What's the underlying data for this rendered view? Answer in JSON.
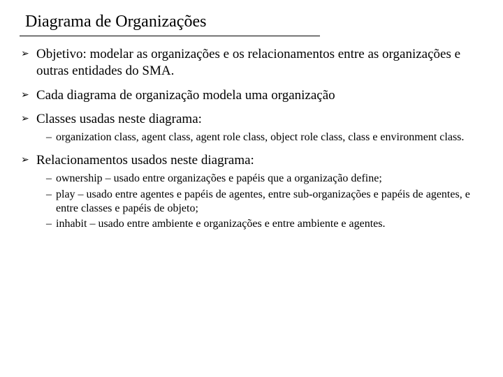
{
  "title": "Diagrama de Organizações",
  "colors": {
    "background": "#ffffff",
    "text": "#000000",
    "rule": "#000000"
  },
  "typography": {
    "title_fontsize": 24,
    "bullet_fontsize": 19,
    "sub_fontsize": 16,
    "font_family": "Times New Roman"
  },
  "bullets": [
    {
      "text": "Objetivo: modelar as organizações e os relacionamentos entre as organizações e outras entidades do SMA.",
      "sub": []
    },
    {
      "text": "Cada diagrama de organização modela uma organização",
      "sub": []
    },
    {
      "text": "Classes usadas neste diagrama:",
      "sub": [
        "organization class, agent class, agent role class, object role class, class e environment class."
      ]
    },
    {
      "text": "Relacionamentos usados neste diagrama:",
      "sub": [
        "ownership – usado entre organizações e papéis que a organização define;",
        "play – usado entre agentes e papéis de agentes, entre sub-organizações e papéis de agentes, e entre classes e papéis de objeto;",
        "inhabit – usado entre ambiente e organizações e entre ambiente e agentes."
      ]
    }
  ]
}
